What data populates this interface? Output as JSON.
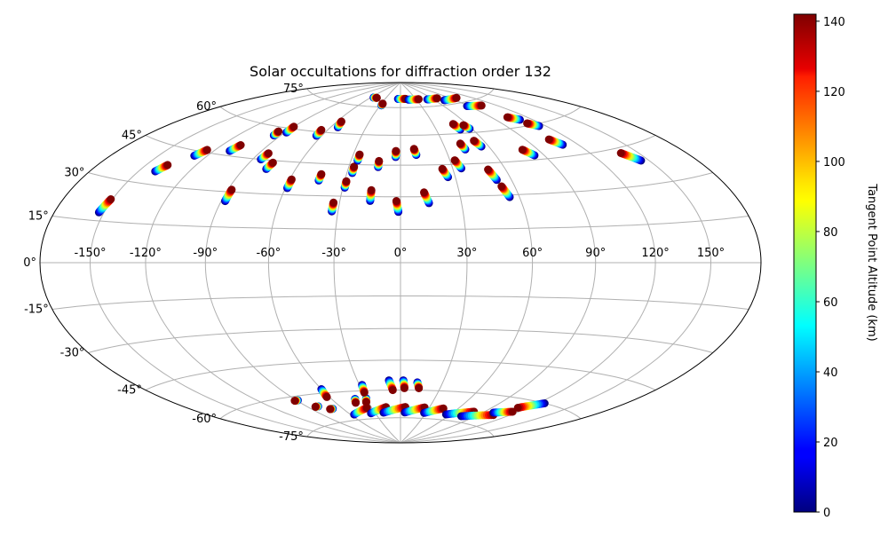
{
  "chart_data": {
    "type": "scatter",
    "projection": "hammer",
    "title": "Solar occultations for diffraction order 132",
    "x_ticks": [
      -150,
      -120,
      -90,
      -60,
      -30,
      0,
      30,
      60,
      90,
      120,
      150
    ],
    "x_tick_labels": [
      "-150°",
      "-120°",
      "-90°",
      "-60°",
      "-30°",
      "0°",
      "30°",
      "60°",
      "90°",
      "120°",
      "150°"
    ],
    "y_ticks": [
      75,
      60,
      45,
      30,
      15,
      0,
      -15,
      -30,
      -45,
      -60,
      -75
    ],
    "y_tick_labels": [
      "75°",
      "60°",
      "45°",
      "30°",
      "15°",
      "0°",
      "-15°",
      "-30°",
      "-45°",
      "-60°",
      "-75°"
    ],
    "grid": true,
    "colorbar": {
      "label": "Tangent Point Altitude (km)",
      "range": [
        0,
        142
      ],
      "ticks": [
        0,
        20,
        40,
        60,
        80,
        100,
        120,
        140
      ],
      "tick_labels": [
        "0",
        "20",
        "40",
        "60",
        "80",
        "100",
        "120",
        "140"
      ],
      "colormap": "jet"
    },
    "occultations": [
      {
        "lon_start": -153,
        "lat_start": 18,
        "lon_end": -151,
        "lat_end": 23
      },
      {
        "lon_start": -140,
        "lat_start": 35,
        "lon_end": -137,
        "lat_end": 38
      },
      {
        "lon_start": -128,
        "lat_start": 43,
        "lon_end": -125,
        "lat_end": 46
      },
      {
        "lon_start": -110,
        "lat_start": 47,
        "lon_end": -108,
        "lat_end": 50
      },
      {
        "lon_start": -88,
        "lat_start": 26,
        "lon_end": -88,
        "lat_end": 31
      },
      {
        "lon_start": -85,
        "lat_start": 45,
        "lon_end": -84,
        "lat_end": 48
      },
      {
        "lon_start": -77,
        "lat_start": 41,
        "lon_end": -76,
        "lat_end": 44
      },
      {
        "lon_start": -59,
        "lat_start": 33,
        "lon_end": -59,
        "lat_end": 37
      },
      {
        "lon_start": -44,
        "lat_start": 37,
        "lon_end": -44,
        "lat_end": 40
      },
      {
        "lon_start": -33,
        "lat_start": 23,
        "lon_end": -33,
        "lat_end": 27
      },
      {
        "lon_start": -29,
        "lat_start": 34,
        "lon_end": -29,
        "lat_end": 37
      },
      {
        "lon_start": -27,
        "lat_start": 41,
        "lon_end": -27,
        "lat_end": 44
      },
      {
        "lon_start": -26,
        "lat_start": 47,
        "lon_end": -26,
        "lat_end": 50
      },
      {
        "lon_start": -15,
        "lat_start": 28,
        "lon_end": -15,
        "lat_end": 33
      },
      {
        "lon_start": -13,
        "lat_start": 44,
        "lon_end": -13,
        "lat_end": 47
      },
      {
        "lon_start": -3,
        "lat_start": 49,
        "lon_end": -3,
        "lat_end": 52
      },
      {
        "lon_start": -1,
        "lat_start": 23,
        "lon_end": -2,
        "lat_end": 28
      },
      {
        "lon_start": 14,
        "lat_start": 27,
        "lon_end": 12,
        "lat_end": 32
      },
      {
        "lon_start": 10,
        "lat_start": 50,
        "lon_end": 9,
        "lat_end": 53
      },
      {
        "lon_start": 26,
        "lat_start": 39,
        "lon_end": 24,
        "lat_end": 43
      },
      {
        "lon_start": 35,
        "lat_start": 43,
        "lon_end": 33,
        "lat_end": 47
      },
      {
        "lon_start": 43,
        "lat_start": 52,
        "lon_end": 42,
        "lat_end": 55
      },
      {
        "lon_start": 55,
        "lat_start": 29,
        "lon_end": 53,
        "lat_end": 34
      },
      {
        "lon_start": 52,
        "lat_start": 37,
        "lon_end": 50,
        "lat_end": 42
      },
      {
        "lon_start": 55,
        "lat_start": 53,
        "lon_end": 53,
        "lat_end": 56
      },
      {
        "lon_start": 84,
        "lat_start": 47,
        "lon_end": 80,
        "lat_end": 50
      },
      {
        "lon_start": 110,
        "lat_start": 50,
        "lon_end": 106,
        "lat_end": 53
      },
      {
        "lon_start": 145,
        "lat_start": 39,
        "lon_end": 139,
        "lat_end": 43
      },
      {
        "lon_start": -95,
        "lat_start": 56,
        "lon_end": -96,
        "lat_end": 58
      },
      {
        "lon_start": -89,
        "lat_start": 58,
        "lon_end": -90,
        "lat_end": 61
      },
      {
        "lon_start": -64,
        "lat_start": 58,
        "lon_end": -65,
        "lat_end": 61
      },
      {
        "lon_start": -54,
        "lat_start": 63,
        "lon_end": -56,
        "lat_end": 66
      },
      {
        "lon_start": 50,
        "lat_start": 62,
        "lon_end": 48,
        "lat_end": 65
      },
      {
        "lon_start": 58,
        "lat_start": 62,
        "lon_end": 56,
        "lat_end": 64
      },
      {
        "lon_start": 115,
        "lat_start": 59,
        "lon_end": 110,
        "lat_end": 61
      },
      {
        "lon_start": 110,
        "lat_start": 63,
        "lon_end": 104,
        "lat_end": 65
      },
      {
        "lon_start": -5,
        "lat_start": 80,
        "lon_end": 10,
        "lat_end": 80
      },
      {
        "lon_start": 15,
        "lat_start": 79.5,
        "lon_end": 35,
        "lat_end": 79.5
      },
      {
        "lon_start": 50,
        "lat_start": 79,
        "lon_end": 70,
        "lat_end": 79
      },
      {
        "lon_start": 75,
        "lat_start": 77.5,
        "lon_end": 100,
        "lat_end": 77.5
      },
      {
        "lon_start": 88,
        "lat_start": 73,
        "lon_end": 105,
        "lat_end": 72
      },
      {
        "lon_start": -55,
        "lat_start": 80,
        "lon_end": -48,
        "lat_end": 80
      },
      {
        "lon_start": -28,
        "lat_start": 76,
        "lon_end": -28,
        "lat_end": 77
      },
      {
        "lon_start": -89,
        "lat_start": -62,
        "lon_end": -92,
        "lat_end": -62
      },
      {
        "lon_start": -80,
        "lat_start": -66,
        "lon_end": -83,
        "lat_end": -66
      },
      {
        "lon_start": -70,
        "lat_start": -68,
        "lon_end": -73,
        "lat_end": -68
      },
      {
        "lon_start": -60,
        "lat_start": -58,
        "lon_end": -62,
        "lat_end": -62
      },
      {
        "lon_start": -40,
        "lat_start": -64,
        "lon_end": -42,
        "lat_end": -66
      },
      {
        "lon_start": -30,
        "lat_start": -64,
        "lon_end": -32,
        "lat_end": -66
      },
      {
        "lon_start": -28,
        "lat_start": -57,
        "lon_end": -29,
        "lat_end": -61
      },
      {
        "lon_start": -8,
        "lat_start": -55,
        "lon_end": -6,
        "lat_end": -60
      },
      {
        "lon_start": 2,
        "lat_start": -55,
        "lon_end": 3,
        "lat_end": -59
      },
      {
        "lon_start": 12,
        "lat_start": -56,
        "lon_end": 14,
        "lat_end": -59
      },
      {
        "lon_start": -56,
        "lat_start": -72,
        "lon_end": -35,
        "lat_end": -69
      },
      {
        "lon_start": -35,
        "lat_start": -72,
        "lon_end": -15,
        "lat_end": -69
      },
      {
        "lon_start": -20,
        "lat_start": -72,
        "lon_end": 5,
        "lat_end": -69
      },
      {
        "lon_start": 5,
        "lat_start": -72,
        "lon_end": 25,
        "lat_end": -69
      },
      {
        "lon_start": 28,
        "lat_start": -72,
        "lon_end": 45,
        "lat_end": -69
      },
      {
        "lon_start": 55,
        "lat_start": -72,
        "lon_end": 80,
        "lat_end": -69
      },
      {
        "lon_start": 75,
        "lat_start": -72,
        "lon_end": 105,
        "lat_end": -69
      },
      {
        "lon_start": 100,
        "lat_start": -68,
        "lon_end": 115,
        "lat_end": -66
      },
      {
        "lon_start": 125,
        "lat_start": -60,
        "lon_end": 112,
        "lat_end": -64
      }
    ]
  }
}
